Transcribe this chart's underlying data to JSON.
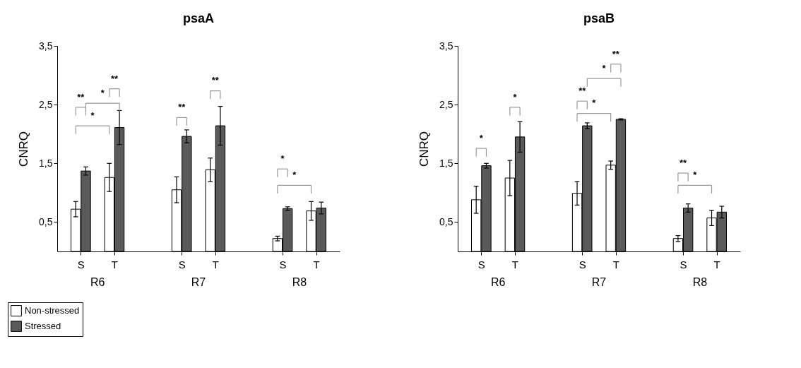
{
  "chart_data": [
    {
      "type": "bar",
      "title": "psaA",
      "ylabel": "CNRQ",
      "categories": [
        "S",
        "T",
        "S",
        "T",
        "S",
        "T"
      ],
      "series": [
        {
          "name": "Non-stressed",
          "color": "#ffffff",
          "values": [
            0.72,
            1.26,
            1.05,
            1.39,
            0.22,
            0.69
          ],
          "errors": [
            0.13,
            0.24,
            0.22,
            0.2,
            0.04,
            0.16
          ]
        },
        {
          "name": "Stressed",
          "color": "#5a5a5a",
          "values": [
            1.37,
            2.11,
            1.96,
            2.14,
            0.73,
            0.74
          ],
          "errors": [
            0.07,
            0.29,
            0.11,
            0.33,
            0.03,
            0.1
          ]
        }
      ],
      "ylim": [
        0,
        3.5
      ],
      "yticks": [
        {
          "value": 0.5,
          "label": "0,5"
        },
        {
          "value": 1.5,
          "label": "1,5"
        },
        {
          "value": 2.5,
          "label": "2,5"
        },
        {
          "value": 3.5,
          "label": "3,5"
        }
      ],
      "grid": false,
      "legend": "bottom left",
      "annotations": [
        "**",
        "*",
        "**",
        "*",
        "**",
        "**",
        "*",
        "*",
        "R6",
        "R7",
        "R8"
      ]
    },
    {
      "type": "bar",
      "title": "psaB",
      "ylabel": "CNRQ",
      "categories": [
        "S",
        "T",
        "S",
        "T",
        "S",
        "T"
      ],
      "series": [
        {
          "name": "Non-stressed",
          "color": "#ffffff",
          "values": [
            0.88,
            1.25,
            0.99,
            1.47,
            0.22,
            0.57
          ],
          "errors": [
            0.23,
            0.3,
            0.2,
            0.07,
            0.05,
            0.13
          ]
        },
        {
          "name": "Stressed",
          "color": "#5a5a5a",
          "values": [
            1.46,
            1.95,
            2.14,
            2.25,
            0.74,
            0.67
          ],
          "errors": [
            0.04,
            0.26,
            0.05,
            0.01,
            0.07,
            0.1
          ]
        }
      ],
      "ylim": [
        0,
        3.5
      ],
      "yticks": [
        {
          "value": 0.5,
          "label": "0,5"
        },
        {
          "value": 1.5,
          "label": "1,5"
        },
        {
          "value": 2.5,
          "label": "2,5"
        },
        {
          "value": 3.5,
          "label": "3,5"
        }
      ],
      "grid": false,
      "legend": false,
      "annotations": [
        "*",
        "*",
        "**",
        "*",
        "**",
        "*",
        "**",
        "*",
        "R6",
        "R7",
        "R8"
      ]
    }
  ]
}
